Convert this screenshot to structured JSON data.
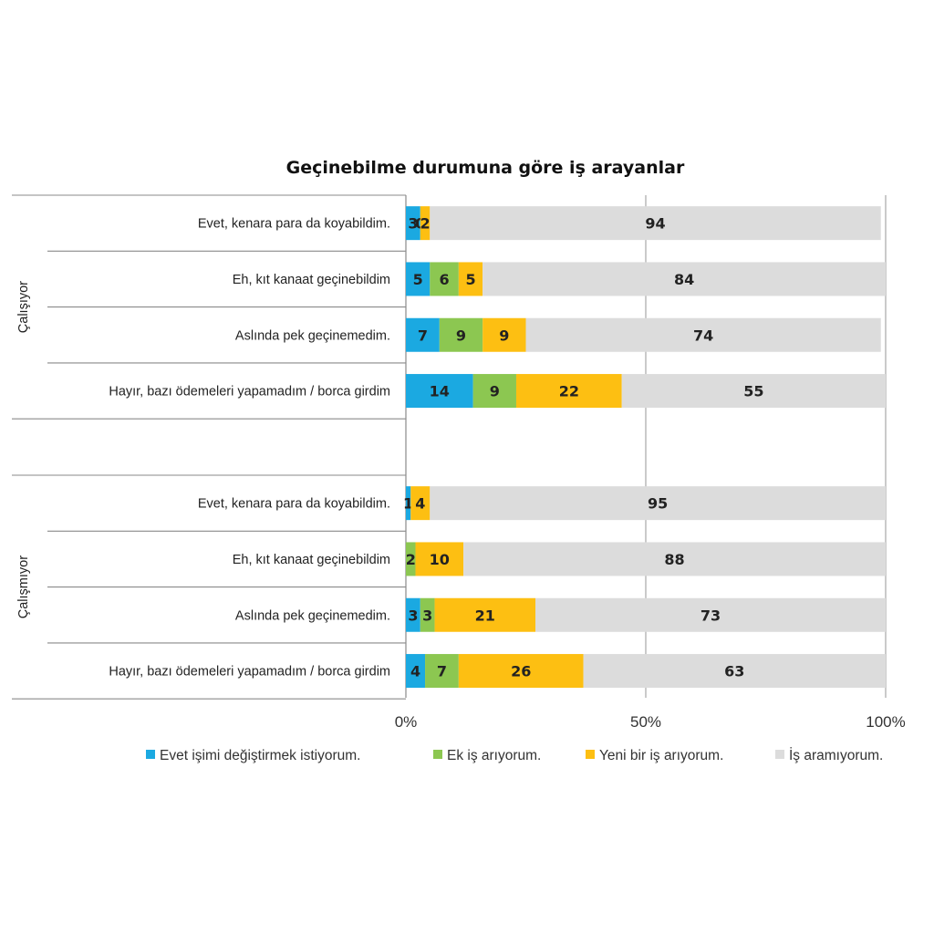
{
  "chart_data": {
    "type": "bar",
    "orientation": "horizontal",
    "stacked": "percent",
    "title": "Geçinebilme durumuna göre iş arayanlar",
    "groups": [
      {
        "label": "Çalışıyor",
        "rows": [
          {
            "label": "Evet, kenara para da koyabildim.",
            "values": [
              3,
              0,
              2,
              94
            ],
            "labels": [
              "3",
              "0",
              "2",
              "94"
            ]
          },
          {
            "label": "Eh, kıt kanaat geçinebildim",
            "values": [
              5,
              6,
              5,
              84
            ],
            "labels": [
              "5",
              "6",
              "5",
              "84"
            ]
          },
          {
            "label": "Aslında pek geçinemedim.",
            "values": [
              7,
              9,
              9,
              74
            ],
            "labels": [
              "7",
              "9",
              "9",
              "74"
            ]
          },
          {
            "label": "Hayır, bazı ödemeleri yapamadım / borca girdim",
            "values": [
              14,
              9,
              22,
              55
            ],
            "labels": [
              "14",
              "9",
              "22",
              "55"
            ]
          }
        ]
      },
      {
        "label": "Çalışmıyor",
        "rows": [
          {
            "label": "Evet, kenara para da koyabildim.",
            "values": [
              1,
              0,
              4,
              95
            ],
            "labels": [
              "1",
              "",
              "4",
              "95"
            ]
          },
          {
            "label": "Eh, kıt kanaat geçinebildim",
            "values": [
              0,
              2,
              10,
              88
            ],
            "labels": [
              "",
              "2",
              "10",
              "88"
            ]
          },
          {
            "label": "Aslında pek geçinemedim.",
            "values": [
              3,
              3,
              21,
              73
            ],
            "labels": [
              "3",
              "3",
              "21",
              "73"
            ]
          },
          {
            "label": "Hayır, bazı ödemeleri yapamadım / borca girdim",
            "values": [
              4,
              7,
              26,
              63
            ],
            "labels": [
              "4",
              "7",
              "26",
              "63"
            ]
          }
        ]
      }
    ],
    "series": [
      {
        "name": "Evet işimi değiştirmek istiyorum.",
        "color": "#1ba9e1"
      },
      {
        "name": "Ek iş arıyorum.",
        "color": "#8cc751"
      },
      {
        "name": "Yeni bir iş arıyorum.",
        "color": "#fdbf12"
      },
      {
        "name": "İş aramıyorum.",
        "color": "#dcdcdc"
      }
    ],
    "xlim": [
      0,
      100
    ],
    "xticks": [
      0,
      50,
      100
    ],
    "xtick_labels": [
      "0%",
      "50%",
      "100%"
    ],
    "grid": true,
    "legend_position": "bottom"
  }
}
